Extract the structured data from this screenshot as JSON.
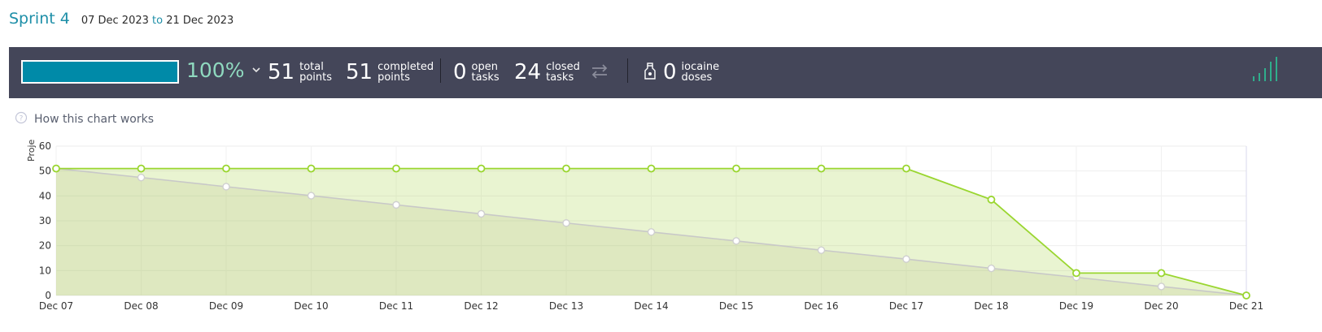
{
  "sprint": {
    "title": "Sprint 4",
    "start": "07 Dec 2023",
    "to": "to",
    "end": "21 Dec 2023"
  },
  "summary": {
    "progress": 1.0,
    "percent": "100%",
    "total_points": "51",
    "total_points_label": [
      "total",
      "points"
    ],
    "completed_points": "51",
    "completed_points_label": [
      "completed",
      "points"
    ],
    "open_tasks": "0",
    "open_tasks_label": [
      "open",
      "tasks"
    ],
    "closed_tasks": "24",
    "closed_tasks_label": [
      "closed",
      "tasks"
    ],
    "iocaine_doses": "0",
    "iocaine_label": [
      "iocaine",
      "doses"
    ]
  },
  "help": {
    "label": "How this chart works"
  },
  "icons": {
    "chevron": "chevron-down-icon",
    "swap": "swap-arrows-icon",
    "potion": "potion-icon",
    "help": "question-circle-icon",
    "sparkline": "sparkline-icon"
  },
  "colors": {
    "accent": "#008aa8",
    "title": "#1e8fa8",
    "real_line": "#9ad630",
    "optimal_line": "#c8c8c8",
    "bar_bg": "#444659"
  },
  "chart_data": {
    "type": "area",
    "title": "",
    "ylabel": "Proje",
    "ylim": [
      0,
      60
    ],
    "yticks": [
      0,
      10,
      20,
      30,
      40,
      50,
      60
    ],
    "grid": true,
    "categories": [
      "Dec 07",
      "Dec 08",
      "Dec 09",
      "Dec 10",
      "Dec 11",
      "Dec 12",
      "Dec 13",
      "Dec 14",
      "Dec 15",
      "Dec 16",
      "Dec 17",
      "Dec 18",
      "Dec 19",
      "Dec 20",
      "Dec 21"
    ],
    "series": [
      {
        "key": "optimal",
        "values": [
          51,
          47.4,
          43.7,
          40.1,
          36.4,
          32.8,
          29.1,
          25.5,
          21.9,
          18.2,
          14.6,
          10.9,
          7.3,
          3.6,
          0
        ]
      },
      {
        "key": "real",
        "values": [
          51,
          51,
          51,
          51,
          51,
          51,
          51,
          51,
          51,
          51,
          51,
          38.5,
          9,
          9,
          0
        ]
      }
    ]
  }
}
